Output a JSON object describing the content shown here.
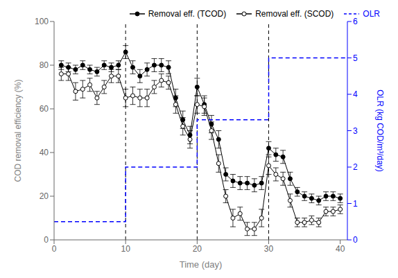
{
  "chart_data": {
    "type": "line",
    "xlabel": "Time (day)",
    "ylabel": "COD removal efficiency (%)",
    "y2label": "OLR (kg COD/m³/day)",
    "xlim": [
      0,
      41
    ],
    "ylim": [
      0,
      100
    ],
    "y2lim": [
      0,
      6
    ],
    "xticks": [
      0,
      10,
      20,
      30,
      40
    ],
    "yticks": [
      0,
      20,
      40,
      60,
      80,
      100
    ],
    "y2ticks": [
      0,
      1,
      2,
      3,
      4,
      5,
      6
    ],
    "grid": false,
    "legend": "upper right",
    "vlines": [
      10,
      20,
      30
    ],
    "series": [
      {
        "name": "Removal eff. (TCOD)",
        "color": "black",
        "marker": "filled_circle",
        "line_style": "solid",
        "x": [
          1,
          2,
          3,
          4,
          5,
          6,
          7,
          8,
          9,
          10,
          11,
          12,
          13,
          14,
          15,
          16,
          17,
          18,
          19,
          20,
          21,
          22,
          23,
          24,
          25,
          26,
          27,
          28,
          29,
          30,
          31,
          32,
          33,
          34,
          35,
          36,
          37,
          38,
          39,
          40
        ],
        "values": [
          80,
          79,
          78,
          80,
          78,
          77,
          80,
          79,
          80,
          86,
          79,
          75,
          78,
          80,
          80,
          79,
          65,
          55,
          48,
          70,
          62,
          53,
          46,
          30,
          27,
          26,
          26,
          25,
          26,
          42,
          39,
          38,
          28,
          22,
          20,
          19,
          18,
          20,
          20,
          19
        ],
        "errors": [
          2,
          2,
          2,
          2,
          2,
          2,
          2,
          2,
          2,
          3,
          3,
          3,
          3,
          3,
          3,
          3,
          4,
          4,
          4,
          4,
          4,
          4,
          4,
          3,
          3,
          3,
          3,
          3,
          3,
          3,
          3,
          3,
          3,
          2,
          2,
          2,
          2,
          2,
          2,
          2
        ]
      },
      {
        "name": "Removal eff. (SCOD)",
        "color": "black",
        "marker": "open_circle",
        "line_style": "solid",
        "x": [
          1,
          2,
          3,
          4,
          5,
          6,
          7,
          8,
          9,
          10,
          11,
          12,
          13,
          14,
          15,
          16,
          17,
          18,
          19,
          20,
          21,
          22,
          23,
          24,
          25,
          26,
          27,
          28,
          29,
          30,
          31,
          32,
          33,
          34,
          35,
          36,
          37,
          38,
          39,
          40
        ],
        "values": [
          76,
          76,
          68,
          69,
          71,
          65,
          70,
          75,
          75,
          65,
          66,
          65,
          65,
          70,
          73,
          72,
          62,
          52,
          46,
          62,
          61,
          50,
          35,
          20,
          10,
          12,
          5,
          5,
          10,
          34,
          30,
          28,
          18,
          8,
          8,
          9,
          8,
          13,
          13,
          14
        ],
        "errors": [
          3,
          3,
          4,
          4,
          3,
          3,
          3,
          3,
          3,
          4,
          4,
          4,
          4,
          3,
          3,
          3,
          4,
          4,
          4,
          4,
          4,
          4,
          4,
          3,
          4,
          3,
          3,
          3,
          4,
          4,
          3,
          3,
          3,
          2,
          2,
          2,
          2,
          2,
          2,
          2
        ]
      },
      {
        "name": "OLR",
        "color": "blue",
        "line_style": "dashed",
        "axis": "y2",
        "x": [
          0,
          10,
          10,
          20,
          20,
          30,
          30,
          41
        ],
        "values": [
          0.5,
          0.5,
          2.0,
          2.0,
          3.3,
          3.3,
          5.0,
          5.0
        ]
      }
    ]
  }
}
